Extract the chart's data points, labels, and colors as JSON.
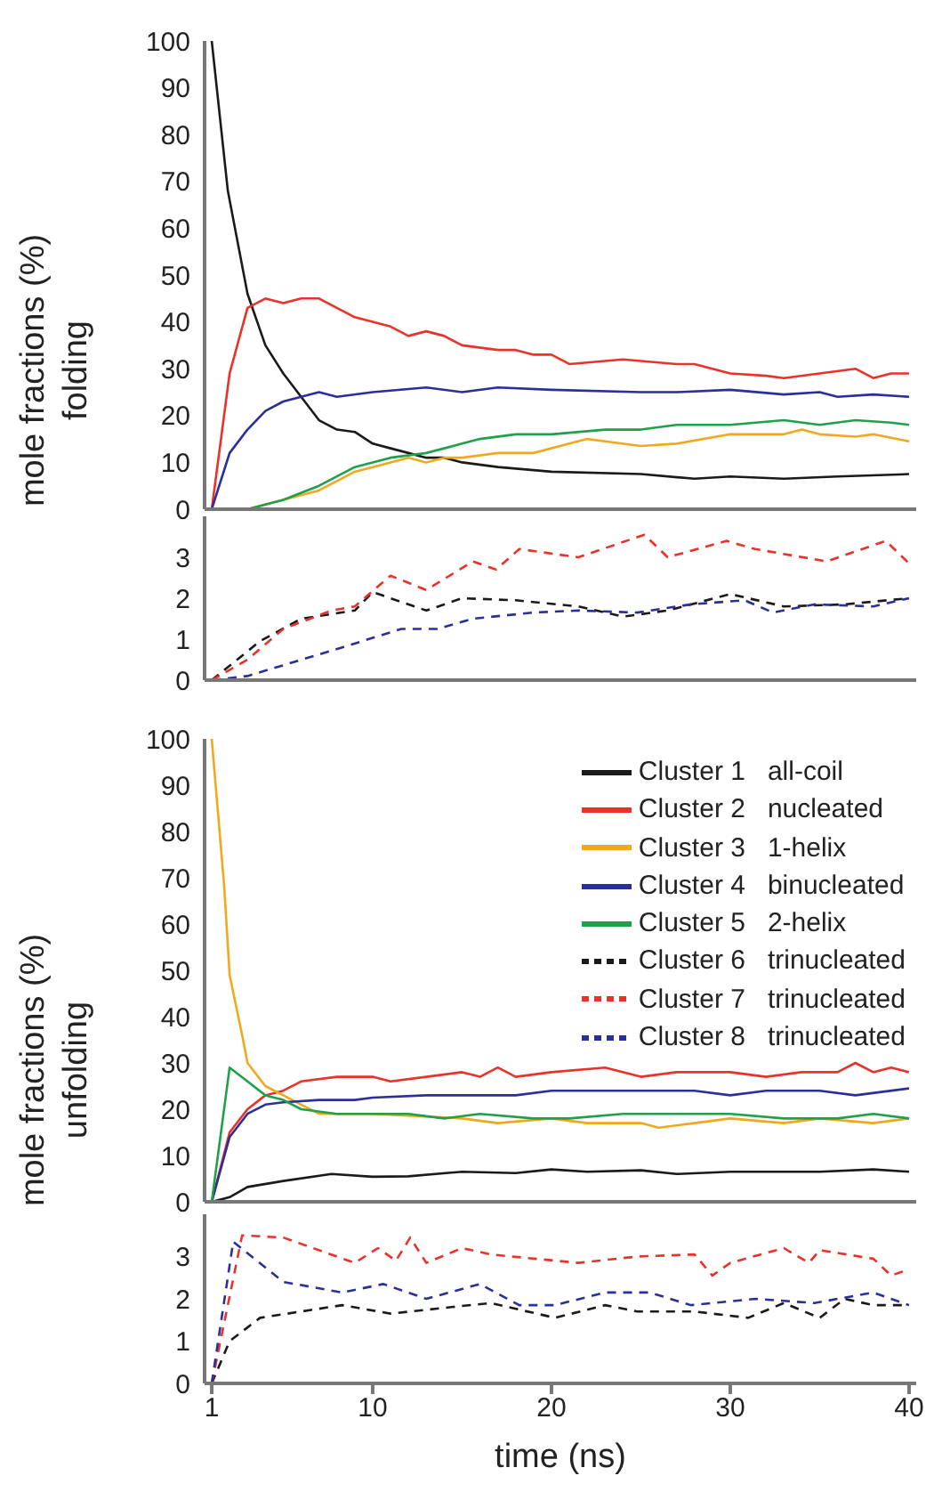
{
  "chart_data": [
    {
      "type": "line",
      "ylabel": "mole fractions (%)\nfolding",
      "xlim": [
        0.6,
        40.4
      ],
      "xticks": [
        1,
        10,
        20,
        30,
        40
      ],
      "ylim": [
        0,
        100
      ],
      "yticks": [
        0,
        10,
        20,
        30,
        40,
        50,
        60,
        70,
        80,
        90,
        100
      ],
      "tick_labels": "y",
      "grid": false,
      "marker": "none",
      "series": [
        {
          "color": "#1a1a1a",
          "x": [
            1,
            1.9,
            3,
            4,
            5,
            7,
            8,
            9,
            10,
            11,
            12,
            13,
            14,
            15,
            17,
            20,
            25,
            28,
            30,
            33,
            36,
            40
          ],
          "values": [
            100,
            68,
            46,
            35,
            29,
            19,
            17,
            16.5,
            14,
            13,
            12,
            11,
            11,
            10,
            9,
            8,
            7.5,
            6.5,
            7,
            6.5,
            7,
            7.5
          ]
        },
        {
          "color": "#e8322a",
          "x": [
            1,
            2,
            3,
            4,
            5,
            6,
            7,
            8,
            9,
            10,
            11,
            12,
            13,
            14,
            15,
            17,
            18,
            19,
            20,
            21,
            24,
            27,
            28,
            30,
            32,
            33,
            35,
            37,
            38,
            39,
            40
          ],
          "values": [
            0,
            29,
            43,
            45,
            44,
            45,
            45,
            43,
            41,
            40,
            39,
            37,
            38,
            37,
            35,
            34,
            34,
            33,
            33,
            31,
            32,
            31,
            31,
            29,
            28.5,
            28,
            29,
            30,
            28,
            29,
            29
          ]
        },
        {
          "color": "#f2a81d",
          "x": [
            1,
            3,
            5,
            7,
            9,
            10,
            11,
            12,
            13,
            14,
            15,
            17,
            19,
            21,
            22,
            23,
            25,
            27,
            30,
            33,
            34,
            35,
            37,
            38,
            40
          ],
          "values": [
            0,
            0,
            2,
            4,
            8,
            9,
            10,
            11,
            10,
            11,
            11,
            12,
            12,
            14,
            15,
            14.5,
            13.5,
            14,
            16,
            16,
            17,
            16,
            15.5,
            16,
            14.5
          ]
        },
        {
          "color": "#2b2f9a",
          "x": [
            1,
            2,
            3,
            4,
            5,
            6,
            7,
            8,
            10,
            13,
            15,
            17,
            20,
            25,
            27,
            30,
            33,
            35,
            36,
            38,
            40
          ],
          "values": [
            0,
            12,
            17,
            21,
            23,
            24,
            25,
            24,
            25,
            26,
            25,
            26,
            25.5,
            25,
            25,
            25.5,
            24.5,
            25,
            24,
            24.5,
            24
          ]
        },
        {
          "color": "#1fa04a",
          "x": [
            1,
            2,
            3,
            5,
            7,
            8,
            9,
            10,
            11,
            13,
            14,
            15,
            16,
            18,
            20,
            23,
            25,
            27,
            30,
            33,
            35,
            37,
            39,
            40
          ],
          "values": [
            0,
            0,
            0,
            2,
            5,
            7,
            9,
            10,
            11,
            12,
            13,
            14,
            15,
            16,
            16,
            17,
            17,
            18,
            18,
            19,
            18,
            19,
            18.5,
            18
          ]
        }
      ]
    },
    {
      "type": "line",
      "xlim": [
        0.6,
        40.4
      ],
      "xticks": [
        1,
        10,
        20,
        30,
        40
      ],
      "ylim": [
        0,
        4
      ],
      "yticks": [
        0,
        1,
        2,
        3
      ],
      "tick_labels": "y",
      "grid": false,
      "marker": "none",
      "series": [
        {
          "color": "#1a1a1a",
          "line_style": "dashed",
          "x": [
            1,
            3.7,
            6,
            9,
            10,
            13,
            15,
            18,
            21.5,
            24,
            26.5,
            30,
            33,
            36.4,
            40
          ],
          "values": [
            0,
            0.95,
            1.5,
            1.7,
            2.15,
            1.7,
            2.0,
            1.95,
            1.8,
            1.55,
            1.7,
            2.1,
            1.8,
            1.85,
            2.0
          ]
        },
        {
          "color": "#e8322a",
          "line_style": "dashed",
          "x": [
            1,
            3,
            5,
            7.7,
            9,
            11,
            13,
            15.6,
            16.9,
            18.2,
            21.5,
            25.2,
            26.5,
            29.8,
            31.4,
            35.4,
            38.7,
            40
          ],
          "values": [
            0,
            0.5,
            1.25,
            1.7,
            1.8,
            2.55,
            2.2,
            2.9,
            2.7,
            3.2,
            3.0,
            3.55,
            3.0,
            3.4,
            3.2,
            2.9,
            3.4,
            2.85
          ]
        },
        {
          "color": "#2b2f9a",
          "line_style": "dashed",
          "x": [
            1,
            3,
            8.3,
            11.6,
            13.6,
            15.6,
            19,
            21.5,
            24.8,
            27.8,
            30.8,
            32.4,
            34.7,
            38,
            40
          ],
          "values": [
            0,
            0.1,
            0.8,
            1.25,
            1.25,
            1.5,
            1.65,
            1.7,
            1.65,
            1.85,
            1.95,
            1.65,
            1.85,
            1.8,
            2.0
          ]
        }
      ]
    },
    {
      "type": "line",
      "ylabel": "mole fractions (%)\nunfolding",
      "xlim": [
        0.6,
        40.4
      ],
      "xticks": [
        1,
        10,
        20,
        30,
        40
      ],
      "ylim": [
        0,
        100
      ],
      "yticks": [
        0,
        10,
        20,
        30,
        40,
        50,
        60,
        70,
        80,
        90,
        100
      ],
      "tick_labels": "y",
      "grid": false,
      "marker": "none",
      "legend": "top right",
      "series": [
        {
          "name": "Cluster 1   all-coil",
          "color": "#1a1a1a",
          "x": [
            1,
            2,
            3,
            5,
            7.7,
            10,
            12,
            15,
            18,
            20,
            22,
            25,
            27,
            30,
            35,
            38,
            40
          ],
          "values": [
            0,
            1,
            3.2,
            4.5,
            6,
            5.4,
            5.5,
            6.5,
            6.2,
            7,
            6.5,
            6.8,
            6,
            6.5,
            6.5,
            7,
            6.5
          ]
        },
        {
          "name": "Cluster 2   nucleated",
          "color": "#e8322a",
          "x": [
            1,
            2,
            3,
            4,
            5,
            6,
            8,
            10,
            11,
            13,
            15,
            16,
            17,
            18,
            20,
            23,
            25,
            27,
            30,
            32,
            34,
            36,
            37,
            38,
            39,
            40
          ],
          "values": [
            0,
            15,
            20,
            23,
            24,
            26,
            27,
            27,
            26,
            27,
            28,
            27,
            29,
            27,
            28,
            29,
            27,
            28,
            28,
            27,
            28,
            28,
            30,
            28,
            29,
            28
          ]
        },
        {
          "name": "Cluster 3   1-helix",
          "color": "#f2a81d",
          "x": [
            1,
            1.7,
            2,
            2.7,
            3,
            4,
            5,
            6,
            7,
            10,
            15,
            17,
            20,
            22,
            25,
            26,
            28,
            30,
            33,
            35,
            38,
            40
          ],
          "values": [
            100,
            68,
            49,
            36,
            30,
            25,
            23,
            21,
            19,
            19,
            18,
            17,
            18,
            17,
            17,
            16,
            17,
            18,
            17,
            18,
            17,
            18
          ]
        },
        {
          "name": "Cluster 4   binucleated",
          "color": "#2b2f9a",
          "x": [
            1,
            2,
            3,
            4,
            5,
            7,
            9,
            10,
            13,
            15,
            18,
            20,
            25,
            28,
            30,
            32,
            35,
            37,
            40
          ],
          "values": [
            0,
            14,
            19,
            21,
            21.5,
            22,
            22,
            22.5,
            23,
            23,
            23,
            24,
            24,
            24,
            23,
            24,
            24,
            23,
            24.5
          ]
        },
        {
          "name": "Cluster 5   2-helix",
          "color": "#1fa04a",
          "x": [
            1,
            2,
            3,
            4,
            5,
            6,
            8,
            10,
            12,
            14,
            16,
            19,
            21,
            24,
            27,
            30,
            33,
            36,
            38,
            40
          ],
          "values": [
            0,
            29,
            26,
            23,
            22,
            20,
            19,
            19,
            19,
            18,
            19,
            18,
            18,
            19,
            19,
            19,
            18,
            18,
            19,
            18
          ]
        }
      ]
    },
    {
      "type": "line",
      "xlabel": "time (ns)",
      "xlim": [
        0.6,
        40.4
      ],
      "xticks": [
        1,
        10,
        20,
        30,
        40
      ],
      "ylim": [
        0,
        4
      ],
      "yticks": [
        0,
        1,
        2,
        3
      ],
      "grid": false,
      "marker": "none",
      "series": [
        {
          "name": "Cluster 6   trinucleated",
          "color": "#1a1a1a",
          "line_style": "dashed",
          "x": [
            1,
            2,
            3.7,
            6,
            8.3,
            11,
            14.3,
            16.6,
            20.2,
            23,
            24.8,
            28,
            31,
            33,
            35,
            36.4,
            38,
            40
          ],
          "values": [
            0,
            1.0,
            1.55,
            1.7,
            1.85,
            1.65,
            1.8,
            1.9,
            1.55,
            1.85,
            1.7,
            1.7,
            1.55,
            1.9,
            1.55,
            2.0,
            1.85,
            1.85
          ]
        },
        {
          "name": "Cluster 7   trinucleated",
          "color": "#e8322a",
          "line_style": "dashed",
          "x": [
            1,
            2.7,
            5,
            9,
            10.3,
            11.3,
            12.1,
            13,
            15,
            16.6,
            21.5,
            24.8,
            28,
            29,
            30,
            33,
            34.4,
            35,
            38,
            39,
            40
          ],
          "values": [
            0,
            3.5,
            3.45,
            2.85,
            3.2,
            2.9,
            3.45,
            2.85,
            3.2,
            3.05,
            2.85,
            3.0,
            3.05,
            2.55,
            2.85,
            3.2,
            2.85,
            3.15,
            2.95,
            2.55,
            2.7
          ]
        },
        {
          "name": "Cluster 8   trinucleated",
          "color": "#2b2f9a",
          "line_style": "dashed",
          "x": [
            1,
            2.2,
            5,
            8.3,
            10.6,
            13,
            16,
            18.2,
            20.2,
            23,
            25.5,
            27.8,
            31.4,
            34.7,
            38,
            40
          ],
          "values": [
            0,
            3.35,
            2.4,
            2.15,
            2.35,
            2.0,
            2.35,
            1.85,
            1.85,
            2.15,
            2.15,
            1.85,
            2.0,
            1.9,
            2.15,
            1.85
          ]
        }
      ]
    }
  ]
}
